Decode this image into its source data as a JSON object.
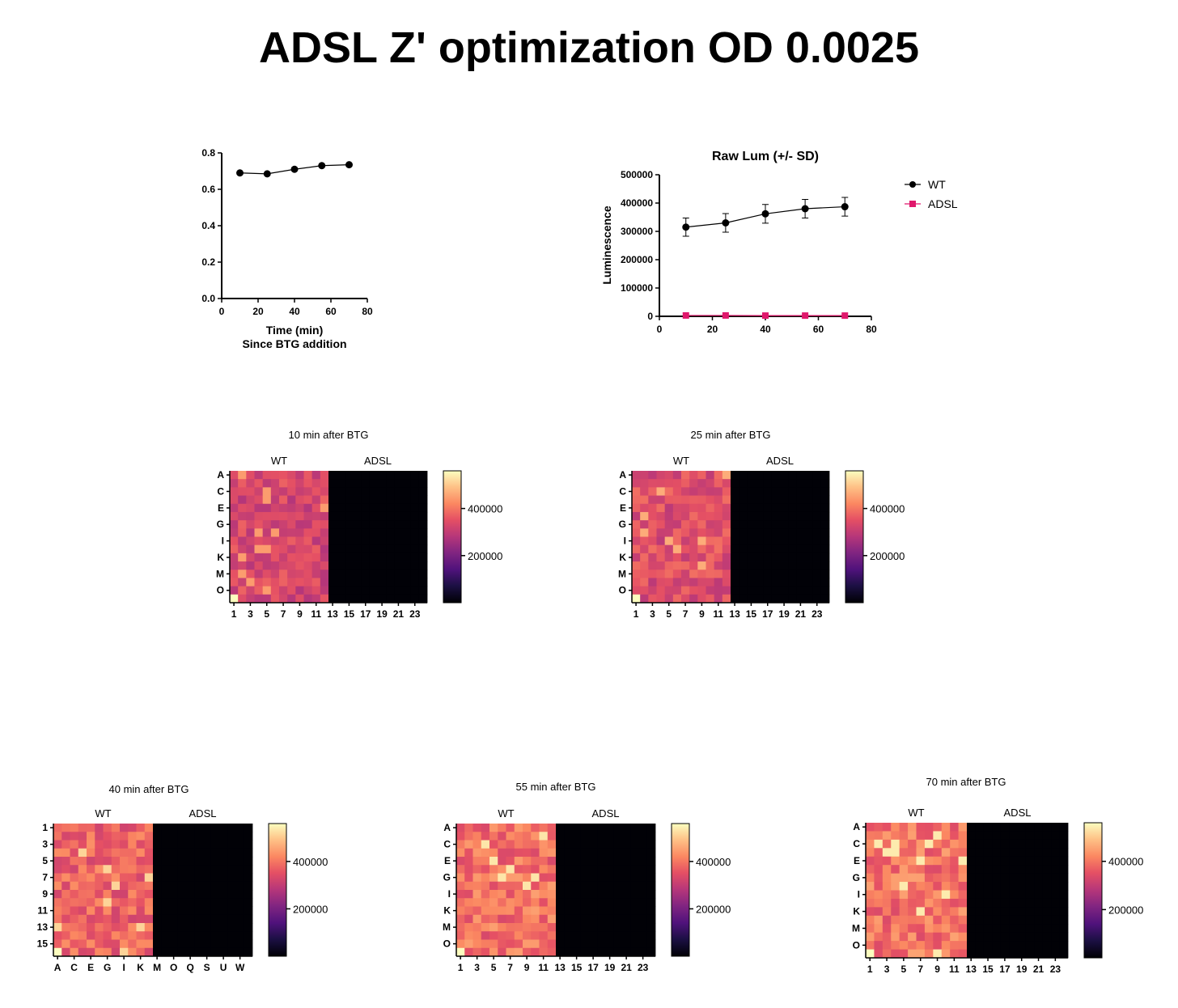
{
  "title": "ADSL Z' optimization OD 0.0025",
  "colors": {
    "wt": "#000000",
    "adsl": "#e0186c"
  },
  "chart_data": [
    {
      "id": "zprime",
      "type": "line",
      "title": "",
      "xlabel": "Time (min)",
      "xlabel2": "Since BTG addition",
      "ylabel": "",
      "xlim": [
        0,
        80
      ],
      "ylim": [
        0,
        0.8
      ],
      "xticks": [
        "0",
        "20",
        "40",
        "60",
        "80"
      ],
      "yticks": [
        "0.0",
        "0.2",
        "0.4",
        "0.6",
        "0.8"
      ],
      "series": [
        {
          "x": [
            10,
            25,
            40,
            55,
            70
          ],
          "y": [
            0.69,
            0.685,
            0.71,
            0.73,
            0.735
          ]
        }
      ]
    },
    {
      "id": "rawlum",
      "type": "line",
      "title": "Raw Lum (+/- SD)",
      "xlabel": "",
      "ylabel": "Luminescence",
      "xlim": [
        0,
        80
      ],
      "ylim": [
        0,
        500000
      ],
      "xticks": [
        "0",
        "20",
        "40",
        "60",
        "80"
      ],
      "yticks": [
        "0",
        "100000",
        "200000",
        "300000",
        "400000",
        "500000"
      ],
      "legend": "right",
      "series": [
        {
          "name": "WT",
          "x": [
            10,
            25,
            40,
            55,
            70
          ],
          "y": [
            315000,
            330000,
            362000,
            380000,
            387000
          ],
          "sd": [
            32000,
            33000,
            33000,
            33000,
            33000
          ]
        },
        {
          "name": "ADSL",
          "x": [
            10,
            25,
            40,
            55,
            70
          ],
          "y": [
            3000,
            3000,
            2500,
            2500,
            2500
          ],
          "sd": [
            0,
            0,
            0,
            0,
            0
          ]
        }
      ]
    },
    {
      "id": "heat10",
      "type": "heatmap",
      "title": "10 min after BTG",
      "group_labels": [
        "WT",
        "ADSL"
      ],
      "row_ticks": [
        "A",
        "C",
        "E",
        "G",
        "I",
        "K",
        "M",
        "O"
      ],
      "col_ticks": [
        "1",
        "3",
        "5",
        "7",
        "9",
        "11",
        "13",
        "15",
        "17",
        "19",
        "21",
        "23"
      ],
      "colorbar_ticks": [
        "400000",
        "200000"
      ],
      "wt_typical": 330000,
      "adsl_typical": 3000
    },
    {
      "id": "heat25",
      "type": "heatmap",
      "title": "25 min after BTG",
      "group_labels": [
        "WT",
        "ADSL"
      ],
      "row_ticks": [
        "A",
        "C",
        "E",
        "G",
        "I",
        "K",
        "M",
        "O"
      ],
      "col_ticks": [
        "1",
        "3",
        "5",
        "7",
        "9",
        "11",
        "13",
        "15",
        "17",
        "19",
        "21",
        "23"
      ],
      "colorbar_ticks": [
        "400000",
        "200000"
      ],
      "wt_typical": 345000,
      "adsl_typical": 3000
    },
    {
      "id": "heat40",
      "type": "heatmap",
      "title": "40 min after BTG",
      "group_labels": [
        "WT",
        "ADSL"
      ],
      "row_ticks": [
        "1",
        "3",
        "5",
        "7",
        "9",
        "11",
        "13",
        "15"
      ],
      "col_ticks": [
        "A",
        "C",
        "E",
        "G",
        "I",
        "K",
        "M",
        "O",
        "Q",
        "S",
        "U",
        "W"
      ],
      "colorbar_ticks": [
        "400000",
        "200000"
      ],
      "wt_typical": 380000,
      "adsl_typical": 2500
    },
    {
      "id": "heat55",
      "type": "heatmap",
      "title": "55 min after BTG",
      "group_labels": [
        "WT",
        "ADSL"
      ],
      "row_ticks": [
        "A",
        "C",
        "E",
        "G",
        "I",
        "K",
        "M",
        "O"
      ],
      "col_ticks": [
        "1",
        "3",
        "5",
        "7",
        "9",
        "11",
        "13",
        "15",
        "17",
        "19",
        "21",
        "23"
      ],
      "colorbar_ticks": [
        "400000",
        "200000"
      ],
      "wt_typical": 395000,
      "adsl_typical": 2500
    },
    {
      "id": "heat70",
      "type": "heatmap",
      "title": "70 min after BTG",
      "group_labels": [
        "WT",
        "ADSL"
      ],
      "row_ticks": [
        "A",
        "C",
        "E",
        "G",
        "I",
        "K",
        "M",
        "O"
      ],
      "col_ticks": [
        "1",
        "3",
        "5",
        "7",
        "9",
        "11",
        "13",
        "15",
        "17",
        "19",
        "21",
        "23"
      ],
      "colorbar_ticks": [
        "400000",
        "200000"
      ],
      "wt_typical": 400000,
      "adsl_typical": 2500
    }
  ]
}
